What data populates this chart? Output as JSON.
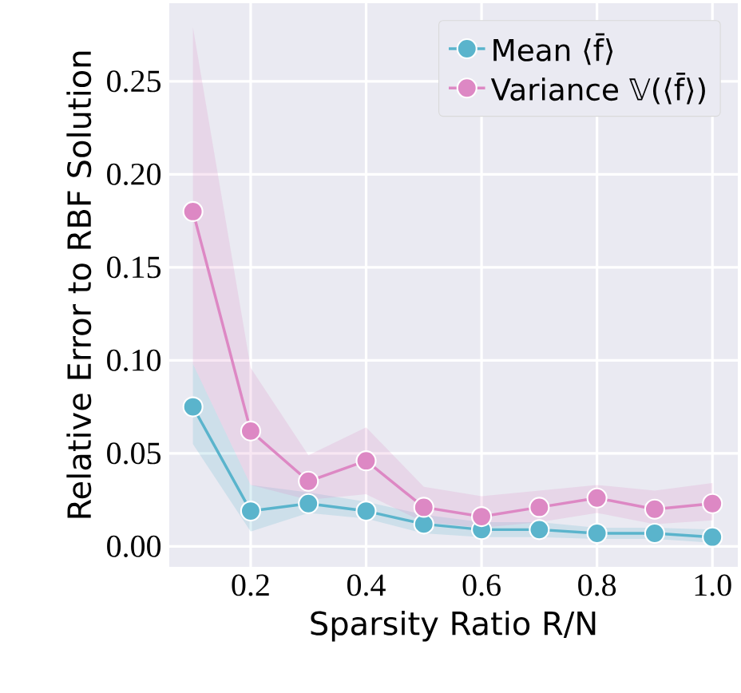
{
  "chart_data": {
    "type": "line",
    "xlabel": "Sparsity Ratio R/N",
    "ylabel": "Relative Error to RBF Solution",
    "x": [
      0.1,
      0.2,
      0.3,
      0.4,
      0.5,
      0.6,
      0.7,
      0.8,
      0.9,
      1.0
    ],
    "series": [
      {
        "name": "Mean ⟨f̄⟩",
        "color": "#5ab4cc",
        "values": [
          0.075,
          0.019,
          0.023,
          0.019,
          0.012,
          0.009,
          0.009,
          0.007,
          0.007,
          0.005
        ],
        "lower": [
          0.055,
          0.008,
          0.018,
          0.015,
          0.007,
          0.005,
          0.005,
          0.004,
          0.004,
          0.002
        ],
        "upper": [
          0.098,
          0.033,
          0.029,
          0.024,
          0.017,
          0.013,
          0.013,
          0.01,
          0.01,
          0.009
        ]
      },
      {
        "name": "Variance 𝕍(⟨f̄⟩)",
        "color": "#dd88c4",
        "values": [
          0.18,
          0.062,
          0.035,
          0.046,
          0.021,
          0.016,
          0.021,
          0.026,
          0.02,
          0.023
        ],
        "lower": [
          0.098,
          0.033,
          0.025,
          0.028,
          0.013,
          0.01,
          0.013,
          0.018,
          0.012,
          0.014
        ],
        "upper": [
          0.279,
          0.096,
          0.049,
          0.064,
          0.032,
          0.027,
          0.03,
          0.033,
          0.03,
          0.034
        ]
      }
    ],
    "xlim": [
      0.059,
      1.044
    ],
    "ylim": [
      -0.011,
      0.292
    ],
    "xticks": [
      0.2,
      0.4,
      0.6,
      0.8,
      {
        "value": 1.0,
        "label": "1.0"
      }
    ],
    "yticks": [
      {
        "value": 0,
        "label": "0.00"
      },
      0.05,
      {
        "value": 0.1,
        "label": "0.10"
      },
      0.15,
      {
        "value": 0.2,
        "label": "0.20"
      },
      0.25
    ],
    "grid": true,
    "legend": "top right",
    "marker": "circle",
    "line_style": "solid"
  }
}
